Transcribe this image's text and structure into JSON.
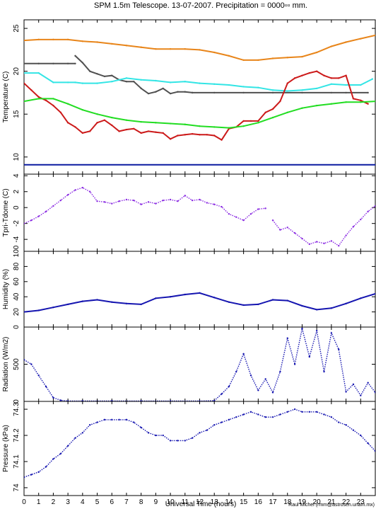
{
  "figure": {
    "title": "SPM 1.5m Telescope. 13-07-2007. Precipitation = 0000▫▫ mm.",
    "xlabel": "Universal Time (hours)",
    "credit": "Raul Michel (rmm@astrosen.unam.mx)"
  },
  "colors": {
    "orange": "#e8851a",
    "gray": "#505050",
    "cyan": "#33e5e5",
    "red": "#cc1a1a",
    "green": "#22dd22",
    "navy": "#0a1aa0",
    "purple": "#8a2be2",
    "blue": "#1515b0"
  },
  "chart_data": [
    {
      "type": "line",
      "ylabel": "Temperature (C)",
      "xlim": [
        0,
        24
      ],
      "ylim": [
        8,
        26
      ],
      "xticks": [
        "0",
        "1",
        "2",
        "3",
        "4",
        "5",
        "6",
        "7",
        "8",
        "9",
        "10",
        "11",
        "12",
        "13",
        "14",
        "15",
        "16",
        "17",
        "18",
        "19",
        "20",
        "21",
        "22",
        "23"
      ],
      "yticks": [
        "10",
        "15",
        "20",
        "25"
      ],
      "series": [
        {
          "color": "orange",
          "x": [
            0,
            1,
            2,
            3,
            4,
            5,
            6,
            7,
            8,
            9,
            10,
            11,
            12,
            13,
            14,
            15,
            16,
            17,
            18,
            19,
            20,
            21,
            22,
            23,
            24
          ],
          "y": [
            23.6,
            23.7,
            23.7,
            23.7,
            23.5,
            23.4,
            23.2,
            23.0,
            22.8,
            22.6,
            22.6,
            22.6,
            22.5,
            22.2,
            21.8,
            21.3,
            21.3,
            21.5,
            21.6,
            21.7,
            22.2,
            22.9,
            23.4,
            23.8,
            24.2
          ]
        },
        {
          "color": "gray",
          "x": [
            0,
            1,
            2,
            3,
            3.5
          ],
          "y": [
            20.9,
            20.9,
            20.9,
            20.9,
            20.9
          ]
        },
        {
          "color": "gray",
          "x": [
            3.5,
            4,
            4.5,
            5,
            5.5,
            6,
            6.5,
            7,
            7.5,
            8,
            8.5,
            9,
            9.5,
            10,
            10.5,
            11,
            11.5
          ],
          "y": [
            21.8,
            21.0,
            20.0,
            19.7,
            19.4,
            19.5,
            19.0,
            18.8,
            18.8,
            18.0,
            17.4,
            17.6,
            18.0,
            17.4,
            17.6,
            17.6,
            17.5
          ]
        },
        {
          "color": "gray",
          "x": [
            11.5,
            13,
            15,
            17,
            19,
            21,
            22,
            23.5
          ],
          "y": [
            17.5,
            17.5,
            17.5,
            17.5,
            17.5,
            17.5,
            17.5,
            17.5
          ]
        },
        {
          "color": "cyan",
          "x": [
            0,
            1,
            2,
            3,
            3.5,
            4,
            5,
            6,
            7,
            8,
            9,
            10,
            11,
            12,
            13,
            14,
            15,
            16,
            17,
            18,
            19,
            20,
            21,
            22,
            23,
            23.8
          ],
          "y": [
            19.8,
            19.8,
            18.7,
            18.7,
            18.7,
            18.6,
            18.6,
            18.8,
            19.2,
            19.0,
            18.9,
            18.7,
            18.8,
            18.6,
            18.5,
            18.4,
            18.2,
            18.1,
            17.8,
            17.7,
            17.8,
            18.0,
            18.5,
            18.4,
            18.4,
            19.1
          ]
        },
        {
          "color": "red",
          "x": [
            0,
            0.5,
            1,
            1.5,
            2,
            2.5,
            3,
            3.5,
            4,
            4.5,
            5,
            5.5,
            6,
            6.5,
            7,
            7.5,
            8,
            8.5,
            9,
            9.5,
            10,
            10.5,
            11,
            11.5,
            12,
            12.5,
            13,
            13.5,
            14,
            14.5,
            15,
            15.5,
            16,
            16.5,
            17,
            17.5,
            18,
            18.5,
            19,
            19.5,
            20,
            20.5,
            21,
            21.5,
            22,
            22.5,
            23,
            23.5
          ],
          "y": [
            18.6,
            17.8,
            17.0,
            16.6,
            16.0,
            15.2,
            14.0,
            13.5,
            12.8,
            13.0,
            14.0,
            14.3,
            13.7,
            13.0,
            13.2,
            13.3,
            12.8,
            13.0,
            12.9,
            12.8,
            12.1,
            12.5,
            12.6,
            12.7,
            12.6,
            12.6,
            12.5,
            12.0,
            13.3,
            13.5,
            14.2,
            14.2,
            14.2,
            15.2,
            15.6,
            16.5,
            18.6,
            19.2,
            19.5,
            19.8,
            20.0,
            19.5,
            19.2,
            19.2,
            19.5,
            16.8,
            16.6,
            16.2
          ]
        },
        {
          "color": "green",
          "x": [
            0,
            1,
            2,
            3,
            4,
            5,
            6,
            7,
            8,
            9,
            10,
            11,
            12,
            13,
            14,
            15,
            16,
            17,
            18,
            19,
            20,
            21,
            22,
            23,
            24
          ],
          "y": [
            16.5,
            16.8,
            16.8,
            16.2,
            15.5,
            15.0,
            14.6,
            14.3,
            14.1,
            14.0,
            13.9,
            13.8,
            13.6,
            13.5,
            13.4,
            13.6,
            14.0,
            14.6,
            15.2,
            15.7,
            16.0,
            16.2,
            16.4,
            16.4,
            16.5
          ]
        },
        {
          "color": "navy",
          "x": [
            0,
            24
          ],
          "y": [
            9.1,
            9.1
          ]
        }
      ]
    },
    {
      "type": "scatter",
      "ylabel": "Tpri-Tdome (C)",
      "xlim": [
        0,
        24
      ],
      "ylim": [
        -5.5,
        4.2
      ],
      "yticks": [
        "-4",
        "-2",
        "0",
        "2",
        "4"
      ],
      "series": [
        {
          "color": "purple",
          "x": [
            0,
            0.5,
            1,
            1.5,
            2,
            2.5,
            3,
            3.5,
            4,
            4.5,
            5,
            5.5,
            6,
            6.5,
            7,
            7.5,
            8,
            8.5,
            9,
            9.5,
            10,
            10.5,
            11,
            11.5,
            12,
            12.5,
            13,
            13.5,
            14,
            14.5,
            15,
            15.5,
            16,
            16.5
          ],
          "y": [
            -2.0,
            -1.6,
            -1.1,
            -0.5,
            0.2,
            0.9,
            1.6,
            2.2,
            2.5,
            2.0,
            0.8,
            0.7,
            0.5,
            0.8,
            1.0,
            0.9,
            0.4,
            0.7,
            0.5,
            0.9,
            1.0,
            0.8,
            1.5,
            0.9,
            1.0,
            0.6,
            0.4,
            0.1,
            -0.8,
            -1.2,
            -1.6,
            -0.8,
            -0.2,
            -0.1
          ]
        },
        {
          "color": "purple",
          "x": [
            17,
            17.5,
            18,
            18.5,
            19,
            19.5,
            20,
            20.5,
            21,
            21.5,
            22,
            22.5,
            23,
            23.5,
            24
          ],
          "y": [
            -1.6,
            -2.8,
            -2.5,
            -3.2,
            -3.9,
            -4.6,
            -4.3,
            -4.5,
            -4.2,
            -4.8,
            -3.5,
            -2.4,
            -1.5,
            -0.5,
            0.2
          ]
        }
      ]
    },
    {
      "type": "line",
      "ylabel": "Humidity (%)",
      "xlim": [
        0,
        24
      ],
      "ylim": [
        0,
        100
      ],
      "yticks": [
        "0",
        "20",
        "40",
        "60",
        "80",
        "100"
      ],
      "series": [
        {
          "color": "blue",
          "x": [
            0,
            1,
            2,
            3,
            4,
            5,
            6,
            7,
            8,
            9,
            10,
            11,
            12,
            13,
            14,
            15,
            16,
            17,
            18,
            19,
            20,
            21,
            22,
            23,
            24
          ],
          "y": [
            20,
            22,
            26,
            30,
            34,
            36,
            33,
            31,
            30,
            38,
            40,
            43,
            45,
            39,
            33,
            29,
            30,
            36,
            35,
            28,
            23,
            25,
            31,
            38,
            44
          ]
        }
      ]
    },
    {
      "type": "scatter",
      "ylabel": "Radiation (W/m2)",
      "xlim": [
        0,
        24
      ],
      "ylim": [
        0,
        1000
      ],
      "yticks": [
        "0",
        "500"
      ],
      "series": [
        {
          "color": "blue",
          "x": [
            0,
            0.5,
            1,
            1.5,
            2,
            2.5,
            3,
            4,
            6,
            8,
            10,
            12,
            13,
            13.5,
            14,
            14.5,
            15,
            15.5,
            16,
            16.5,
            17,
            17.5,
            18,
            18.5,
            19,
            19.5,
            20,
            20.5,
            21,
            21.5,
            22,
            22.5,
            23,
            23.5,
            24
          ],
          "y": [
            560,
            500,
            350,
            200,
            50,
            15,
            5,
            5,
            5,
            5,
            5,
            5,
            10,
            100,
            200,
            400,
            640,
            350,
            150,
            300,
            120,
            400,
            850,
            500,
            980,
            600,
            950,
            400,
            920,
            700,
            130,
            230,
            80,
            250,
            120
          ]
        }
      ]
    },
    {
      "type": "scatter",
      "ylabel": "Pressure (kPa)",
      "xlim": [
        0,
        24
      ],
      "ylim": [
        73.97,
        74.33
      ],
      "yticks": [
        "74",
        "74.1",
        "74.2",
        "74.3"
      ],
      "series": [
        {
          "color": "blue",
          "x": [
            0,
            0.5,
            1,
            1.5,
            2,
            2.5,
            3,
            3.5,
            4,
            4.5,
            5,
            5.5,
            6,
            6.5,
            7,
            7.5,
            8,
            8.5,
            9,
            9.5,
            10,
            10.5,
            11,
            11.5,
            12,
            12.5,
            13,
            13.5,
            14,
            14.5,
            15,
            15.5,
            16,
            16.5,
            17,
            17.5,
            18,
            18.5,
            19,
            19.5,
            20,
            20.5,
            21,
            21.5,
            22,
            22.5,
            23,
            23.5,
            24
          ],
          "y": [
            74.04,
            74.05,
            74.06,
            74.08,
            74.11,
            74.13,
            74.16,
            74.19,
            74.21,
            74.24,
            74.25,
            74.26,
            74.26,
            74.26,
            74.26,
            74.25,
            74.23,
            74.21,
            74.2,
            74.2,
            74.18,
            74.18,
            74.18,
            74.19,
            74.21,
            74.22,
            74.24,
            74.25,
            74.26,
            74.27,
            74.28,
            74.29,
            74.28,
            74.27,
            74.27,
            74.28,
            74.29,
            74.3,
            74.29,
            74.29,
            74.29,
            74.28,
            74.27,
            74.25,
            74.24,
            74.22,
            74.2,
            74.17,
            74.14
          ]
        }
      ]
    }
  ]
}
